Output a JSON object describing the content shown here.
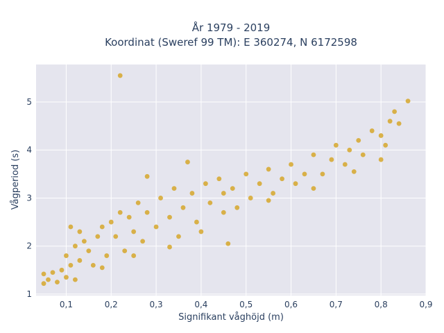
{
  "chart_data": {
    "type": "scatter",
    "title": [
      "År 1979 - 2019",
      "Koordinat (Sweref 99 TM): E 360274, N 6172598"
    ],
    "xlabel": "Signifikant våghöjd (m)",
    "ylabel": "Vågperiod (s)",
    "xlim": [
      0.033,
      0.9
    ],
    "ylim": [
      0.97,
      5.78
    ],
    "x_ticks": [
      0.1,
      0.2,
      0.3,
      0.4,
      0.5,
      0.6,
      0.7,
      0.8,
      0.9
    ],
    "x_tick_labels": [
      "0,1",
      "0,2",
      "0,3",
      "0,4",
      "0,5",
      "0,6",
      "0,7",
      "0,8",
      "0,9"
    ],
    "y_ticks": [
      1,
      2,
      3,
      4,
      5
    ],
    "y_tick_labels": [
      "1",
      "2",
      "3",
      "4",
      "5"
    ],
    "grid": true,
    "background_color": "#e5e5ee",
    "marker_color": "#d4a21e",
    "series": [
      {
        "points": [
          [
            0.05,
            1.22
          ],
          [
            0.05,
            1.42
          ],
          [
            0.06,
            1.3
          ],
          [
            0.07,
            1.45
          ],
          [
            0.08,
            1.25
          ],
          [
            0.09,
            1.5
          ],
          [
            0.1,
            1.35
          ],
          [
            0.11,
            1.6
          ],
          [
            0.1,
            1.8
          ],
          [
            0.12,
            1.3
          ],
          [
            0.13,
            1.7
          ],
          [
            0.12,
            2.0
          ],
          [
            0.14,
            2.1
          ],
          [
            0.15,
            1.9
          ],
          [
            0.13,
            2.3
          ],
          [
            0.11,
            2.4
          ],
          [
            0.16,
            1.6
          ],
          [
            0.17,
            2.2
          ],
          [
            0.18,
            2.4
          ],
          [
            0.19,
            1.8
          ],
          [
            0.2,
            2.5
          ],
          [
            0.21,
            2.2
          ],
          [
            0.22,
            2.7
          ],
          [
            0.23,
            1.9
          ],
          [
            0.24,
            2.6
          ],
          [
            0.25,
            2.3
          ],
          [
            0.26,
            2.9
          ],
          [
            0.27,
            2.1
          ],
          [
            0.28,
            2.7
          ],
          [
            0.3,
            2.4
          ],
          [
            0.31,
            3.0
          ],
          [
            0.33,
            2.6
          ],
          [
            0.34,
            3.2
          ],
          [
            0.36,
            2.8
          ],
          [
            0.38,
            3.1
          ],
          [
            0.39,
            2.5
          ],
          [
            0.41,
            3.3
          ],
          [
            0.42,
            2.9
          ],
          [
            0.44,
            3.4
          ],
          [
            0.45,
            3.1
          ],
          [
            0.47,
            3.2
          ],
          [
            0.48,
            2.8
          ],
          [
            0.5,
            3.5
          ],
          [
            0.51,
            3.0
          ],
          [
            0.53,
            3.3
          ],
          [
            0.55,
            3.6
          ],
          [
            0.56,
            3.1
          ],
          [
            0.58,
            3.4
          ],
          [
            0.6,
            3.7
          ],
          [
            0.61,
            3.3
          ],
          [
            0.63,
            3.5
          ],
          [
            0.65,
            3.9
          ],
          [
            0.67,
            3.5
          ],
          [
            0.69,
            3.8
          ],
          [
            0.7,
            4.1
          ],
          [
            0.72,
            3.7
          ],
          [
            0.73,
            4.0
          ],
          [
            0.75,
            4.2
          ],
          [
            0.76,
            3.9
          ],
          [
            0.78,
            4.4
          ],
          [
            0.8,
            4.3
          ],
          [
            0.81,
            4.1
          ],
          [
            0.82,
            4.6
          ],
          [
            0.83,
            4.8
          ],
          [
            0.84,
            4.55
          ],
          [
            0.86,
            5.02
          ],
          [
            0.22,
            5.55
          ],
          [
            0.37,
            3.75
          ],
          [
            0.28,
            3.45
          ],
          [
            0.46,
            2.05
          ],
          [
            0.33,
            1.98
          ],
          [
            0.4,
            2.3
          ],
          [
            0.18,
            1.55
          ],
          [
            0.25,
            1.8
          ],
          [
            0.35,
            2.2
          ],
          [
            0.45,
            2.7
          ],
          [
            0.55,
            2.95
          ],
          [
            0.65,
            3.2
          ],
          [
            0.74,
            3.55
          ],
          [
            0.8,
            3.8
          ]
        ]
      }
    ]
  }
}
